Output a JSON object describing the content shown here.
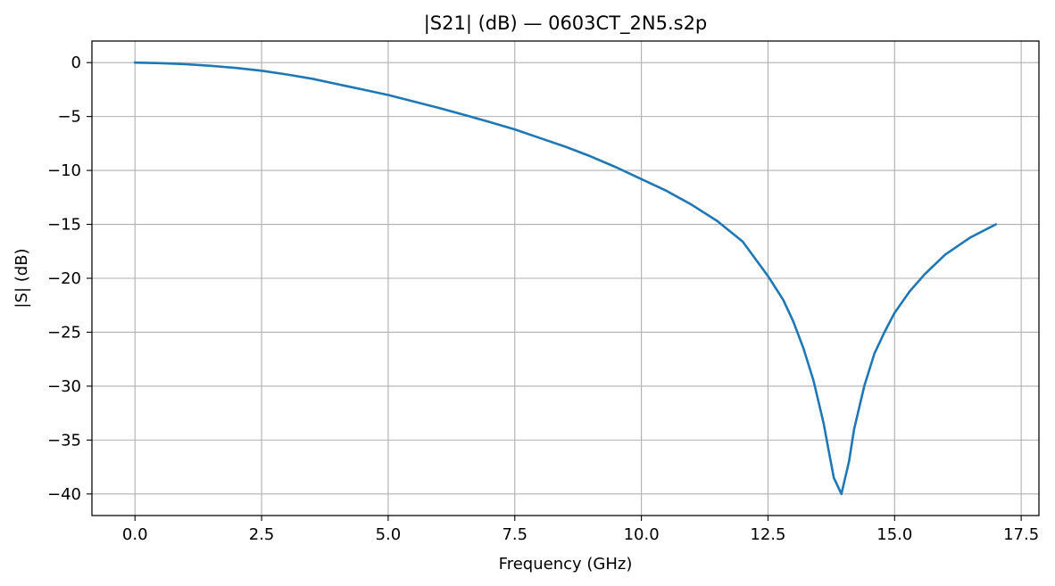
{
  "chart_data": {
    "type": "line",
    "title": "|S21| (dB) — 0603CT_2N5.s2p",
    "xlabel": "Frequency (GHz)",
    "ylabel": "|S| (dB)",
    "xlim": [
      -0.85,
      17.85
    ],
    "ylim": [
      -42,
      2
    ],
    "xticks": [
      0.0,
      2.5,
      5.0,
      7.5,
      10.0,
      12.5,
      15.0,
      17.5
    ],
    "xtick_labels": [
      "0.0",
      "2.5",
      "5.0",
      "7.5",
      "10.0",
      "12.5",
      "15.0",
      "17.5"
    ],
    "yticks": [
      0,
      -5,
      -10,
      -15,
      -20,
      -25,
      -30,
      -35,
      -40
    ],
    "ytick_labels": [
      "0",
      "−5",
      "−10",
      "−15",
      "−20",
      "−25",
      "−30",
      "−35",
      "−40"
    ],
    "grid": true,
    "series": [
      {
        "color": "#1f77b4",
        "x": [
          0.0,
          0.5,
          1.0,
          1.5,
          2.0,
          2.5,
          3.0,
          3.5,
          4.0,
          4.5,
          5.0,
          5.5,
          6.0,
          6.5,
          7.0,
          7.5,
          8.0,
          8.5,
          9.0,
          9.5,
          10.0,
          10.5,
          11.0,
          11.5,
          12.0,
          12.5,
          12.8,
          13.0,
          13.2,
          13.4,
          13.6,
          13.7,
          13.8,
          13.95,
          14.1,
          14.2,
          14.4,
          14.6,
          14.8,
          15.0,
          15.3,
          15.6,
          16.0,
          16.5,
          17.0
        ],
        "y": [
          0.0,
          -0.05,
          -0.15,
          -0.3,
          -0.5,
          -0.75,
          -1.1,
          -1.5,
          -2.0,
          -2.5,
          -3.0,
          -3.6,
          -4.2,
          -4.85,
          -5.5,
          -6.2,
          -7.0,
          -7.8,
          -8.7,
          -9.7,
          -10.8,
          -11.9,
          -13.2,
          -14.7,
          -16.6,
          -19.8,
          -22.0,
          -24.0,
          -26.5,
          -29.5,
          -33.5,
          -36.0,
          -38.5,
          -40.0,
          -37.0,
          -34.0,
          -30.0,
          -27.0,
          -25.0,
          -23.2,
          -21.2,
          -19.6,
          -17.8,
          -16.2,
          -15.0
        ]
      }
    ]
  }
}
